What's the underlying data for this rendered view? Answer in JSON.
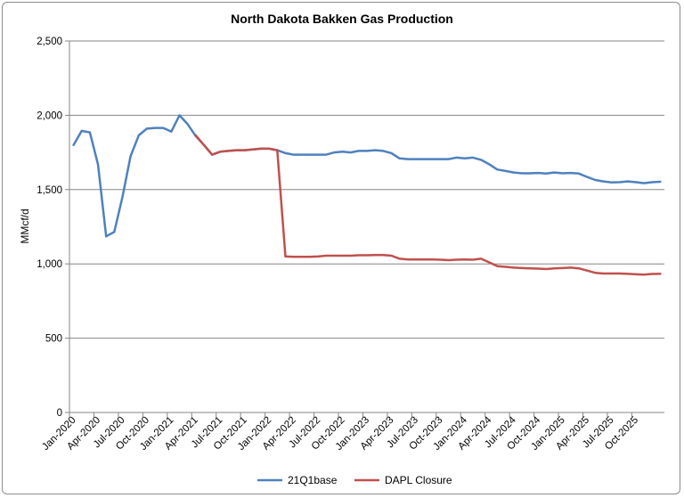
{
  "chart_data": {
    "type": "line",
    "title": "North Dakota Bakken Gas Production",
    "ylabel": "MMcf/d",
    "xlabel": "",
    "ylim": [
      0,
      2500
    ],
    "yticks": [
      0,
      500,
      1000,
      1500,
      2000,
      2500
    ],
    "ytick_labels": [
      "0",
      "500",
      "1,000",
      "1,500",
      "2,000",
      "2,500"
    ],
    "grid": "horizontal",
    "legend": "bottom",
    "x_labels": [
      {
        "i": 0,
        "label": "Jan-2020"
      },
      {
        "i": 3,
        "label": "Apr-2020"
      },
      {
        "i": 6,
        "label": "Jul-2020"
      },
      {
        "i": 9,
        "label": "Oct-2020"
      },
      {
        "i": 12,
        "label": "Jan-2021"
      },
      {
        "i": 15,
        "label": "Apr-2021"
      },
      {
        "i": 18,
        "label": "Jul-2021"
      },
      {
        "i": 21,
        "label": "Oct-2021"
      },
      {
        "i": 24,
        "label": "Jan-2022"
      },
      {
        "i": 27,
        "label": "Apr-2022"
      },
      {
        "i": 30,
        "label": "Jul-2022"
      },
      {
        "i": 33,
        "label": "Oct-2022"
      },
      {
        "i": 36,
        "label": "Jan-2023"
      },
      {
        "i": 39,
        "label": "Apr-2023"
      },
      {
        "i": 42,
        "label": "Jul-2023"
      },
      {
        "i": 45,
        "label": "Oct-2023"
      },
      {
        "i": 48,
        "label": "Jan-2024"
      },
      {
        "i": 51,
        "label": "Apr-2024"
      },
      {
        "i": 54,
        "label": "Jul-2024"
      },
      {
        "i": 57,
        "label": "Oct-2024"
      },
      {
        "i": 60,
        "label": "Jan-2025"
      },
      {
        "i": 63,
        "label": "Apr-2025"
      },
      {
        "i": 66,
        "label": "Jul-2025"
      },
      {
        "i": 69,
        "label": "Oct-2025"
      }
    ],
    "series": [
      {
        "name": "21Q1base",
        "color": "#4f81bd",
        "start_month": "Jan-2020",
        "values": [
          1800,
          1895,
          1885,
          1670,
          1185,
          1215,
          1450,
          1725,
          1865,
          1910,
          1915,
          1915,
          1890,
          2000,
          1940,
          1860,
          1800,
          1735,
          1755,
          1760,
          1765,
          1765,
          1770,
          1775,
          1775,
          1765,
          1745,
          1735,
          1735,
          1735,
          1735,
          1735,
          1750,
          1755,
          1750,
          1760,
          1760,
          1765,
          1760,
          1745,
          1710,
          1705,
          1705,
          1705,
          1705,
          1705,
          1705,
          1715,
          1710,
          1715,
          1700,
          1670,
          1635,
          1625,
          1615,
          1610,
          1610,
          1612,
          1608,
          1615,
          1610,
          1612,
          1608,
          1585,
          1565,
          1555,
          1548,
          1550,
          1555,
          1550,
          1543,
          1550,
          1553
        ]
      },
      {
        "name": "DAPL Closure",
        "color": "#c0504d",
        "start_month": "Apr-2021",
        "values": [
          1865,
          1800,
          1735,
          1755,
          1760,
          1765,
          1765,
          1770,
          1775,
          1775,
          1765,
          1050,
          1048,
          1048,
          1048,
          1050,
          1055,
          1055,
          1055,
          1055,
          1058,
          1058,
          1060,
          1060,
          1055,
          1035,
          1030,
          1030,
          1030,
          1030,
          1028,
          1025,
          1028,
          1030,
          1028,
          1035,
          1010,
          985,
          980,
          975,
          972,
          970,
          968,
          965,
          970,
          972,
          975,
          970,
          955,
          940,
          935,
          935,
          935,
          933,
          930,
          928,
          932,
          933
        ]
      }
    ]
  }
}
